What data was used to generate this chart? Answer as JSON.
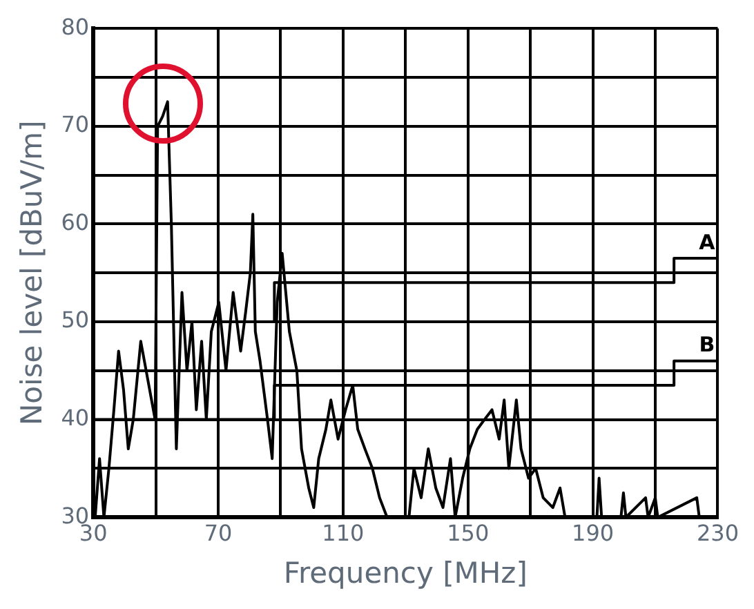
{
  "chart_data": {
    "type": "line",
    "xlabel": "Frequency [MHz]",
    "ylabel": "Noise level [dBuV/m]",
    "xlim": [
      30,
      230
    ],
    "xticks": [
      30,
      {
        "value": 50,
        "label": null
      },
      70,
      {
        "value": 90,
        "label": null
      },
      110,
      {
        "value": 130,
        "label": null
      },
      150,
      {
        "value": 170,
        "label": null
      },
      190,
      {
        "value": 210,
        "label": null
      },
      230
    ],
    "ylim": [
      30,
      80
    ],
    "yticks": [
      30,
      {
        "value": 35,
        "label": null
      },
      40,
      {
        "value": 45,
        "label": null
      },
      50,
      {
        "value": 55,
        "label": null
      },
      60,
      {
        "value": 65,
        "label": null
      },
      70,
      {
        "value": 75,
        "label": null
      },
      80
    ],
    "grid": true,
    "legend": false,
    "marker": "none",
    "line_style": "solid",
    "series": [
      {
        "color": "#000000",
        "x": [
          30.6,
          32,
          33.4,
          35,
          36.6,
          38.1,
          39.7,
          41.2,
          42.8,
          45.2,
          47.5,
          49.8,
          50.6,
          52.2,
          53.8,
          55,
          56.6,
          58.4,
          60,
          61.6,
          63,
          64.7,
          66.2,
          67.8,
          70.2,
          72.5,
          74.8,
          77.2,
          78.8,
          80.3,
          81.1,
          81.9,
          83.4,
          85.8,
          87.3,
          88.9,
          90.5,
          92.8,
          95.2,
          96.7,
          99,
          100.6,
          102.2,
          104.5,
          106.1,
          108.4,
          110.8,
          113.1,
          114.7,
          117,
          119.4,
          121.7,
          124.1,
          127.2,
          131.1,
          132.7,
          135,
          137.3,
          139.7,
          142,
          144.4,
          145.9,
          148.3,
          150.6,
          153,
          155.3,
          157.7,
          160,
          161.6,
          163.1,
          165.5,
          167,
          169.4,
          171.7,
          174.1,
          177.2,
          179.5,
          181.1,
          183.4,
          191.3,
          192,
          192.8,
          199,
          199.8,
          200.6,
          206.9,
          207.7,
          210,
          210.8,
          223.3,
          224.1,
          228
        ],
        "values": [
          30,
          36,
          30,
          35,
          41,
          47,
          43,
          37,
          40,
          48,
          44,
          40,
          70,
          71,
          72.5,
          60,
          37,
          53,
          45,
          50,
          41,
          48,
          40,
          49,
          52,
          45,
          53,
          47,
          51,
          55,
          61,
          49,
          46,
          40,
          36,
          52,
          57,
          49,
          45,
          37,
          33,
          31,
          36,
          39,
          42,
          38,
          41,
          43.5,
          39,
          37,
          35,
          32,
          30,
          30,
          30,
          35,
          32,
          37,
          33,
          31,
          36,
          30,
          34,
          37,
          39,
          40,
          41,
          38,
          42,
          35,
          42,
          37,
          34,
          35,
          32,
          31,
          33,
          30,
          30,
          30,
          34,
          30,
          30,
          32.5,
          30,
          32,
          30,
          32,
          30,
          32,
          30,
          30
        ]
      },
      {
        "name": "A",
        "color": "#000000",
        "x": [
          30,
          88,
          88,
          216,
          216,
          230
        ],
        "values": [
          50,
          50,
          54,
          54,
          56.5,
          56.5
        ]
      },
      {
        "name": "B",
        "color": "#000000",
        "x": [
          30,
          88,
          88,
          216,
          216,
          230
        ],
        "values": [
          40,
          40,
          43.5,
          43.5,
          46,
          46
        ]
      }
    ]
  }
}
